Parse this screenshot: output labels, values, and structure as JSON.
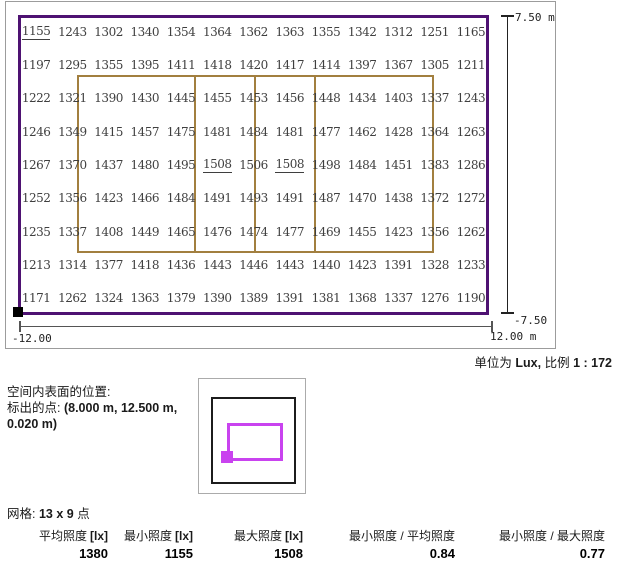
{
  "plan": {
    "grid": {
      "rows": 9,
      "cols": 13,
      "values": [
        [
          1155,
          1243,
          1302,
          1340,
          1354,
          1364,
          1362,
          1363,
          1355,
          1342,
          1312,
          1251,
          1165
        ],
        [
          1197,
          1295,
          1355,
          1395,
          1411,
          1418,
          1420,
          1417,
          1414,
          1397,
          1367,
          1305,
          1211
        ],
        [
          1222,
          1321,
          1390,
          1430,
          1445,
          1455,
          1453,
          1456,
          1448,
          1434,
          1403,
          1337,
          1243
        ],
        [
          1246,
          1349,
          1415,
          1457,
          1475,
          1481,
          1484,
          1481,
          1477,
          1462,
          1428,
          1364,
          1263
        ],
        [
          1267,
          1370,
          1437,
          1480,
          1495,
          1508,
          1506,
          1508,
          1498,
          1484,
          1451,
          1383,
          1286
        ],
        [
          1252,
          1356,
          1423,
          1466,
          1484,
          1491,
          1493,
          1491,
          1487,
          1470,
          1438,
          1372,
          1272
        ],
        [
          1235,
          1337,
          1408,
          1449,
          1465,
          1476,
          1474,
          1477,
          1469,
          1455,
          1423,
          1356,
          1262
        ],
        [
          1213,
          1314,
          1377,
          1418,
          1436,
          1443,
          1446,
          1443,
          1440,
          1423,
          1391,
          1328,
          1233
        ],
        [
          1171,
          1262,
          1324,
          1363,
          1379,
          1390,
          1389,
          1391,
          1381,
          1368,
          1337,
          1276,
          1190
        ]
      ],
      "underlined": [
        [
          0,
          0
        ],
        [
          4,
          5
        ],
        [
          4,
          7
        ]
      ]
    },
    "dimension_labels": {
      "top": "7.50 m",
      "bottom_vertical": "-7.50",
      "left_horizontal": "-12.00",
      "right_horizontal": "12.00 m"
    },
    "colors": {
      "room_outline": "#4e1272",
      "field_lines": "#a27f3f",
      "thumbnail_accent": "#c943ef"
    }
  },
  "units_scale": {
    "prefix": "单位为",
    "unit": "Lux,",
    "scale_label": "比例",
    "scale_value": "1 : 172"
  },
  "surface_info": {
    "line1": "空间内表面的位置:",
    "line2_label": "标出的点:",
    "line2_value": "(8.000 m, 12.500 m,",
    "line3_value": "0.020 m)"
  },
  "grid_info": {
    "prefix": "网格:",
    "value": "13 x 9",
    "suffix": "点"
  },
  "stats": [
    {
      "label": "平均照度",
      "unit": "[lx]",
      "value": "1380"
    },
    {
      "label": "最小照度",
      "unit": "[lx]",
      "value": "1155"
    },
    {
      "label": "最大照度",
      "unit": "[lx]",
      "value": "1508"
    },
    {
      "label": "最小照度 / 平均照度",
      "unit": "",
      "value": "0.84"
    },
    {
      "label": "最小照度 / 最大照度",
      "unit": "",
      "value": "0.77"
    }
  ]
}
